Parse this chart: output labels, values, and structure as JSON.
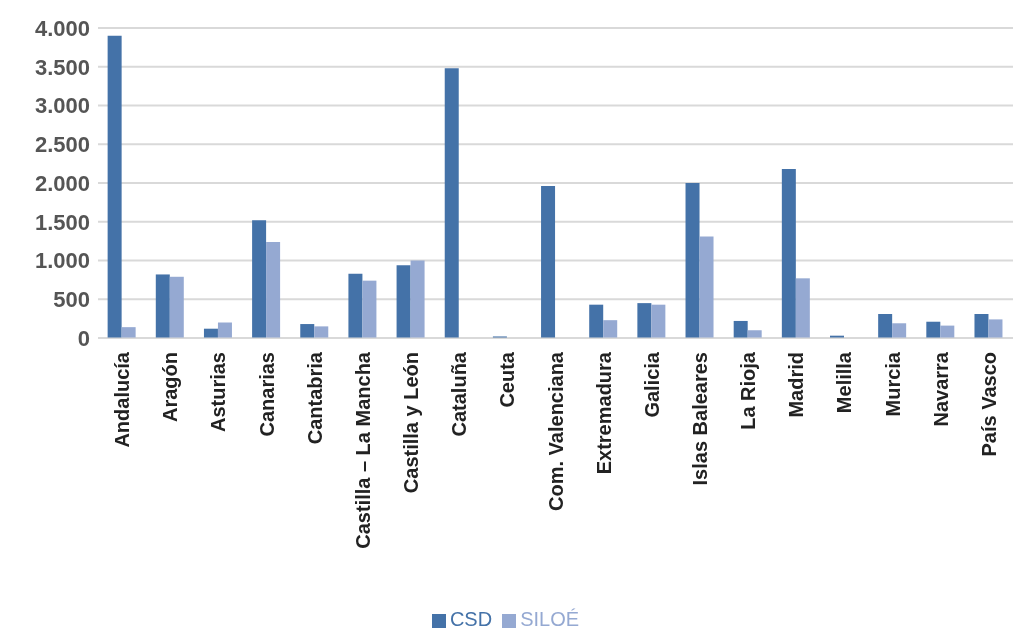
{
  "chart_data": {
    "type": "bar",
    "categories": [
      "Andalucía",
      "Aragón",
      "Asturias",
      "Canarias",
      "Cantabria",
      "Castilla – La Mancha",
      "Castilla y León",
      "Cataluña",
      "Ceuta",
      "Com. Valenciana",
      "Extremadura",
      "Galicia",
      "Islas Baleares",
      "La Rioja",
      "Madrid",
      "Melilla",
      "Murcia",
      "Navarra",
      "País Vasco"
    ],
    "series": [
      {
        "name": "CSD",
        "color": "#4472a8",
        "values": [
          3900,
          820,
          120,
          1520,
          180,
          830,
          940,
          3480,
          20,
          1960,
          430,
          450,
          2000,
          220,
          2180,
          30,
          310,
          210,
          310
        ]
      },
      {
        "name": "SILOÉ",
        "color": "#95a9d2",
        "values": [
          140,
          790,
          200,
          1240,
          150,
          740,
          1000,
          0,
          0,
          0,
          230,
          430,
          1310,
          100,
          770,
          0,
          190,
          160,
          240
        ]
      }
    ],
    "ylim": [
      0,
      4000
    ],
    "yticks": [
      {
        "value": 0,
        "label": "0"
      },
      {
        "value": 500,
        "label": "500"
      },
      {
        "value": 1000,
        "label": "1.000"
      },
      {
        "value": 1500,
        "label": "1.500"
      },
      {
        "value": 2000,
        "label": "2.000"
      },
      {
        "value": 2500,
        "label": "2.500"
      },
      {
        "value": 3000,
        "label": "3.000"
      },
      {
        "value": 3500,
        "label": "3.500"
      },
      {
        "value": 4000,
        "label": "4.000"
      }
    ],
    "grid": "y",
    "legend": "bottom"
  }
}
